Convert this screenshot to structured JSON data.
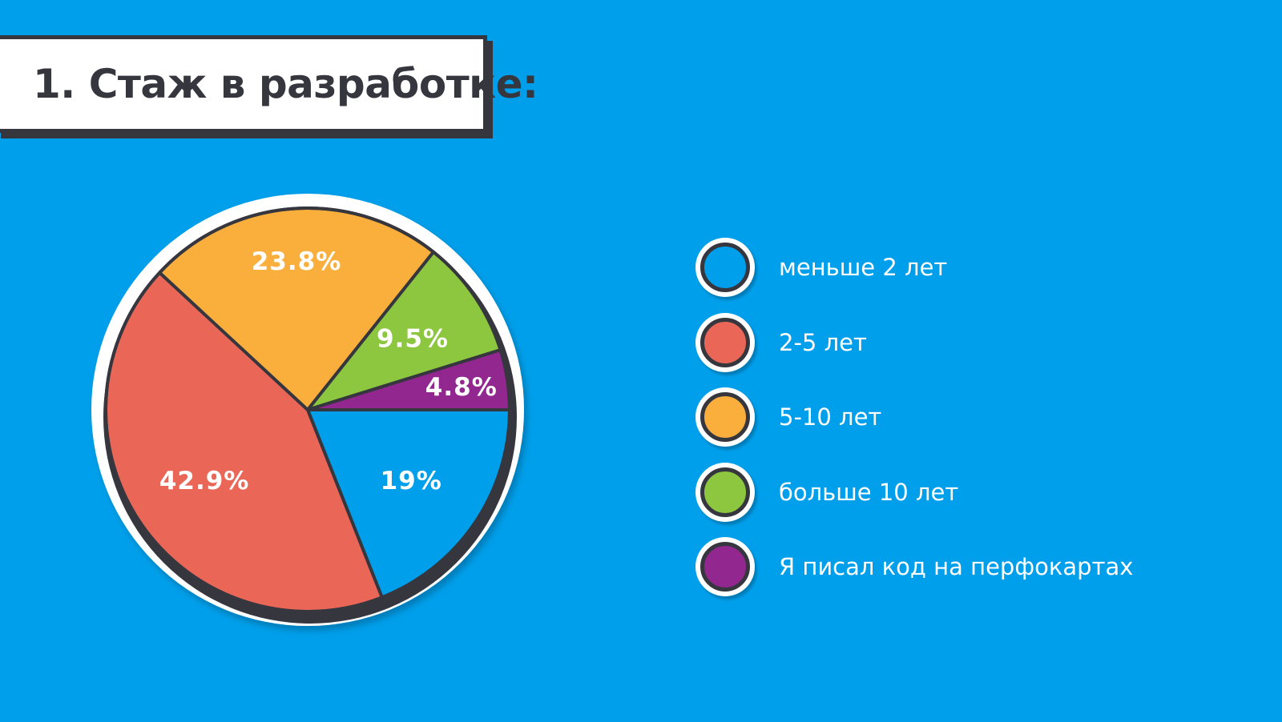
{
  "title": "1. Стаж в разработке:",
  "chart_data": {
    "type": "pie",
    "categories": [
      "меньше 2 лет",
      "2-5 лет",
      "5-10 лет",
      "больше 10 лет",
      "Я писал код на перфокартах"
    ],
    "values": [
      19,
      42.9,
      23.8,
      9.5,
      4.8
    ],
    "labels": [
      "19%",
      "42.9%",
      "23.8%",
      "9.5%",
      "4.8%"
    ],
    "colors": [
      "#009FEB",
      "#EA6758",
      "#FAAF3C",
      "#8DC63F",
      "#92278F"
    ],
    "start_angle": "3 o'clock",
    "direction": "clockwise",
    "legend_position": "right"
  }
}
